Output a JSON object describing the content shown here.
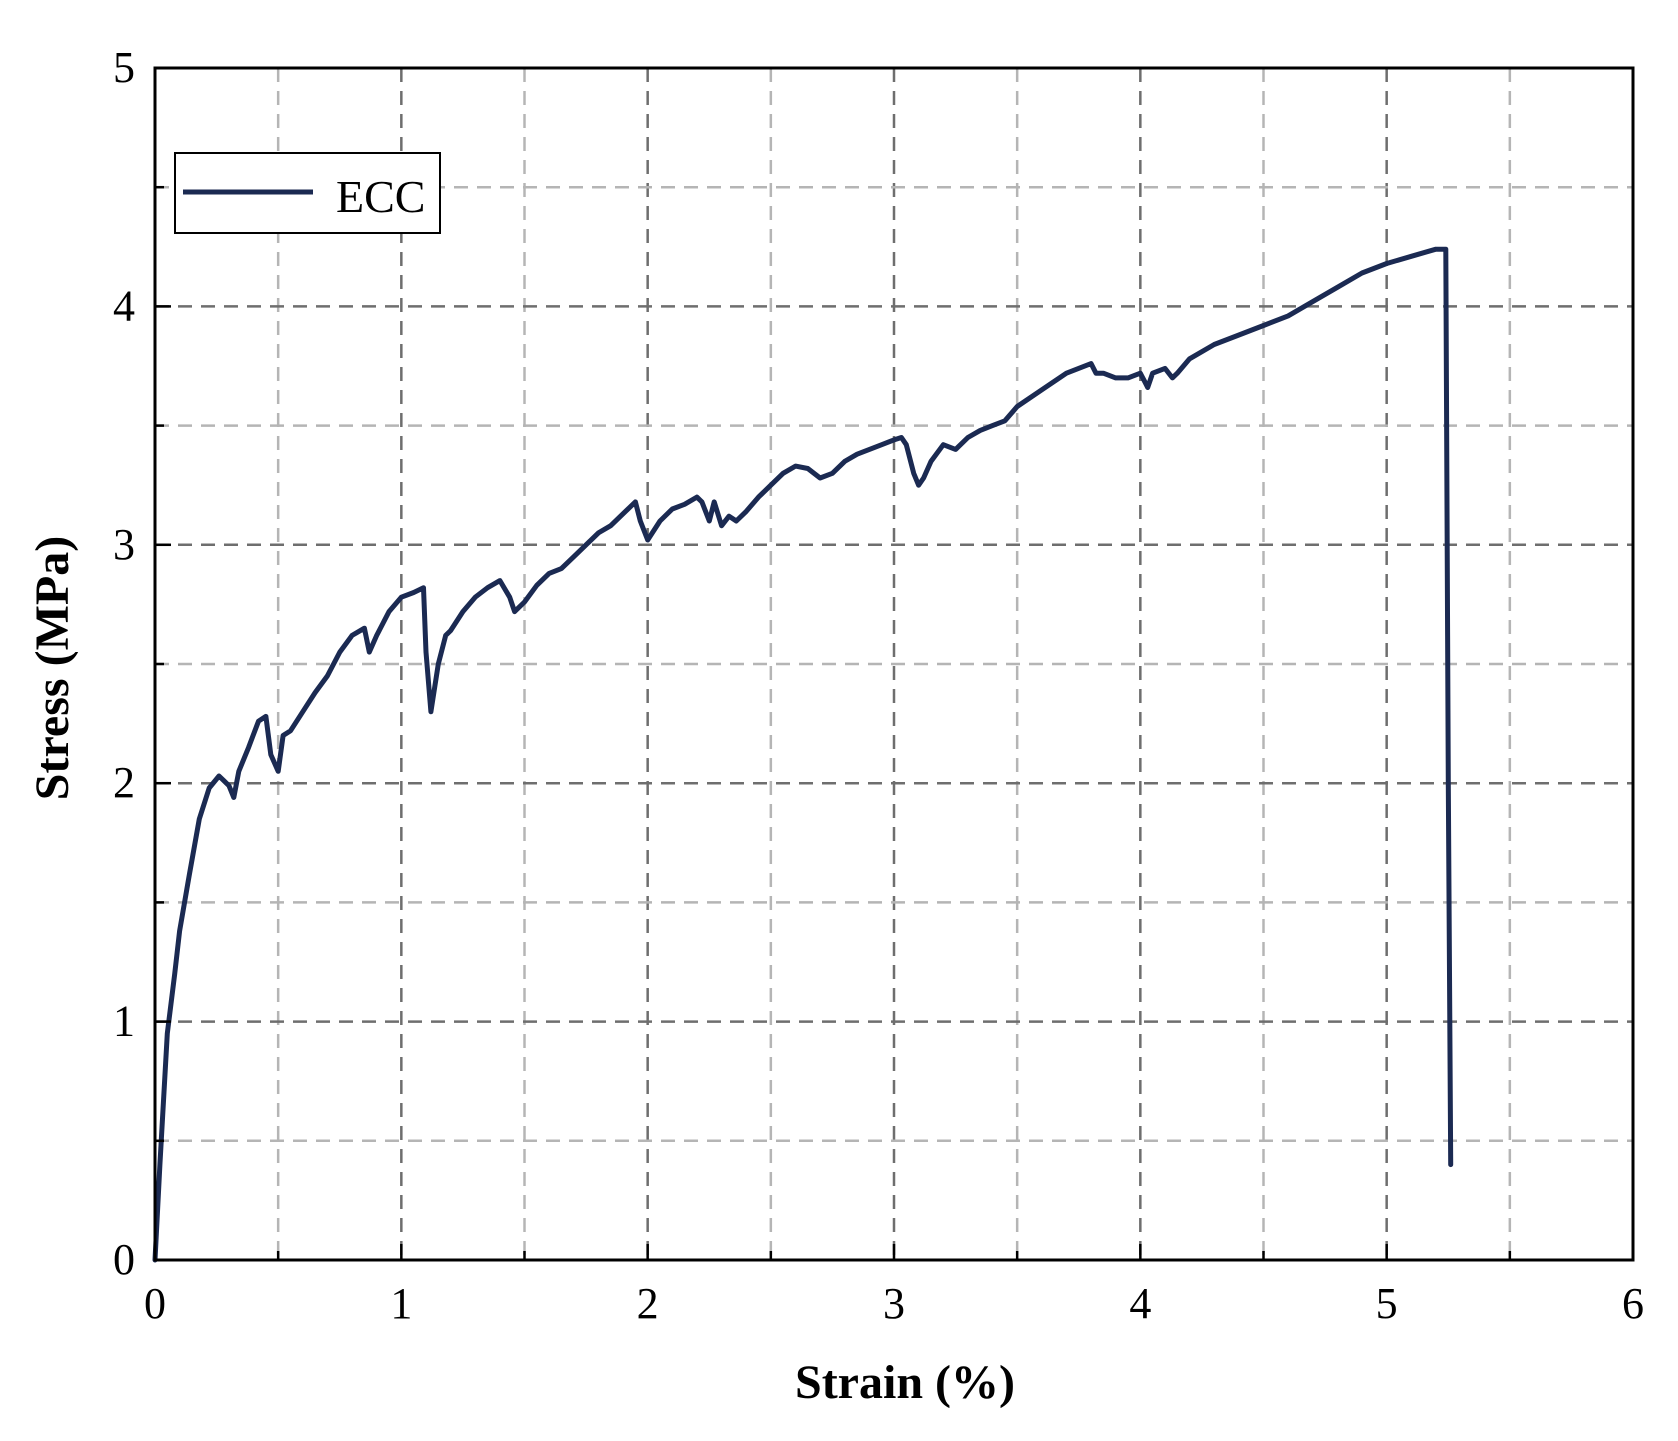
{
  "chart_data": {
    "type": "line",
    "xlabel": "Strain  (%)",
    "ylabel": "Stress  (MPa)",
    "xlim": [
      0,
      6
    ],
    "ylim": [
      0,
      5
    ],
    "x_ticks": [
      "0",
      "1",
      "2",
      "3",
      "4",
      "5",
      "6"
    ],
    "y_ticks": [
      "0",
      "1",
      "2",
      "3",
      "4",
      "5"
    ],
    "grid": true,
    "legend_position": "top-left",
    "series": [
      {
        "name": "ECC",
        "color": "#1b2a52",
        "x": [
          0,
          0.02,
          0.05,
          0.08,
          0.1,
          0.14,
          0.18,
          0.22,
          0.26,
          0.28,
          0.3,
          0.32,
          0.34,
          0.38,
          0.42,
          0.45,
          0.47,
          0.5,
          0.52,
          0.55,
          0.6,
          0.65,
          0.7,
          0.75,
          0.8,
          0.85,
          0.87,
          0.9,
          0.95,
          1.0,
          1.05,
          1.09,
          1.1,
          1.12,
          1.15,
          1.18,
          1.2,
          1.25,
          1.3,
          1.35,
          1.4,
          1.44,
          1.46,
          1.5,
          1.55,
          1.6,
          1.65,
          1.7,
          1.75,
          1.8,
          1.85,
          1.9,
          1.95,
          1.97,
          2.0,
          2.05,
          2.1,
          2.15,
          2.2,
          2.22,
          2.25,
          2.27,
          2.3,
          2.33,
          2.36,
          2.4,
          2.45,
          2.5,
          2.55,
          2.6,
          2.65,
          2.7,
          2.75,
          2.8,
          2.85,
          2.9,
          2.95,
          3.0,
          3.03,
          3.05,
          3.08,
          3.1,
          3.12,
          3.15,
          3.2,
          3.25,
          3.3,
          3.35,
          3.4,
          3.45,
          3.5,
          3.6,
          3.7,
          3.8,
          3.82,
          3.85,
          3.9,
          3.95,
          4.0,
          4.02,
          4.03,
          4.05,
          4.1,
          4.13,
          4.15,
          4.2,
          4.3,
          4.4,
          4.5,
          4.6,
          4.7,
          4.8,
          4.9,
          5.0,
          5.1,
          5.2,
          5.24,
          5.25,
          5.26
        ],
        "y": [
          0,
          0.4,
          0.95,
          1.2,
          1.38,
          1.62,
          1.85,
          1.98,
          2.03,
          2.01,
          1.99,
          1.94,
          2.05,
          2.15,
          2.26,
          2.28,
          2.12,
          2.05,
          2.2,
          2.22,
          2.3,
          2.38,
          2.45,
          2.55,
          2.62,
          2.65,
          2.55,
          2.62,
          2.72,
          2.78,
          2.8,
          2.82,
          2.55,
          2.3,
          2.5,
          2.62,
          2.64,
          2.72,
          2.78,
          2.82,
          2.85,
          2.78,
          2.72,
          2.76,
          2.83,
          2.88,
          2.9,
          2.95,
          3.0,
          3.05,
          3.08,
          3.13,
          3.18,
          3.1,
          3.02,
          3.1,
          3.15,
          3.17,
          3.2,
          3.18,
          3.1,
          3.18,
          3.08,
          3.12,
          3.1,
          3.14,
          3.2,
          3.25,
          3.3,
          3.33,
          3.32,
          3.28,
          3.3,
          3.35,
          3.38,
          3.4,
          3.42,
          3.44,
          3.45,
          3.42,
          3.3,
          3.25,
          3.28,
          3.35,
          3.42,
          3.4,
          3.45,
          3.48,
          3.5,
          3.52,
          3.58,
          3.65,
          3.72,
          3.76,
          3.72,
          3.72,
          3.7,
          3.7,
          3.72,
          3.68,
          3.66,
          3.72,
          3.74,
          3.7,
          3.72,
          3.78,
          3.84,
          3.88,
          3.92,
          3.96,
          4.02,
          4.08,
          4.14,
          4.18,
          4.21,
          4.24,
          4.24,
          2.0,
          0.4
        ]
      }
    ]
  }
}
